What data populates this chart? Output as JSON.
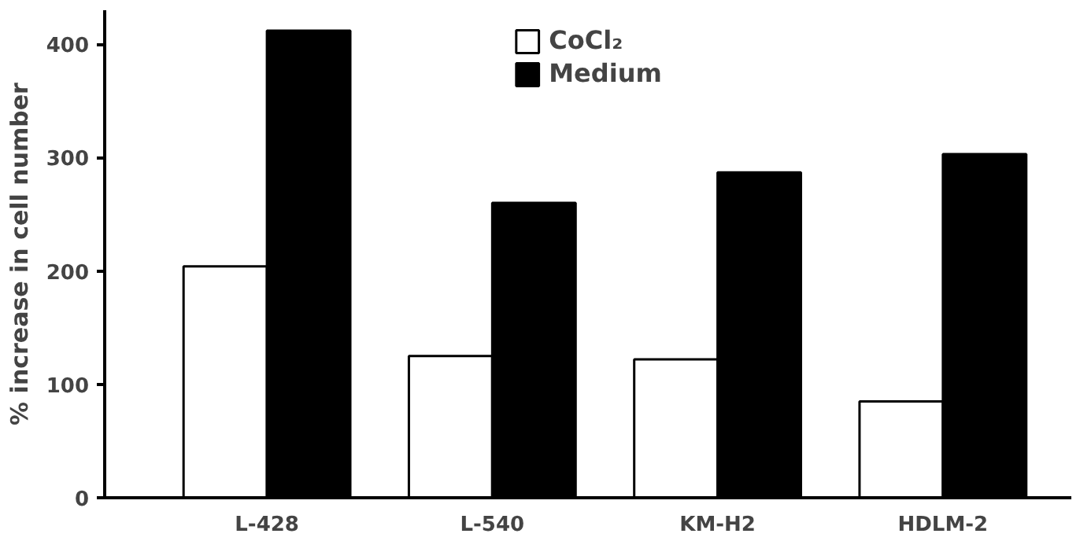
{
  "chart_data": {
    "type": "bar",
    "ylabel": "% increase in cell number",
    "categories": [
      "L-428",
      "L-540",
      "KM-H2",
      "HDLM-2"
    ],
    "series": [
      {
        "name": "CoCl₂",
        "color": "#ffffff",
        "values": [
          204,
          125,
          122,
          85
        ]
      },
      {
        "name": "Medium",
        "color": "#000000",
        "values": [
          412,
          260,
          287,
          303
        ]
      }
    ],
    "ylim": [
      0,
      430
    ],
    "yticks": [
      0,
      100,
      200,
      300,
      400
    ],
    "grid": false,
    "legend": "top"
  }
}
